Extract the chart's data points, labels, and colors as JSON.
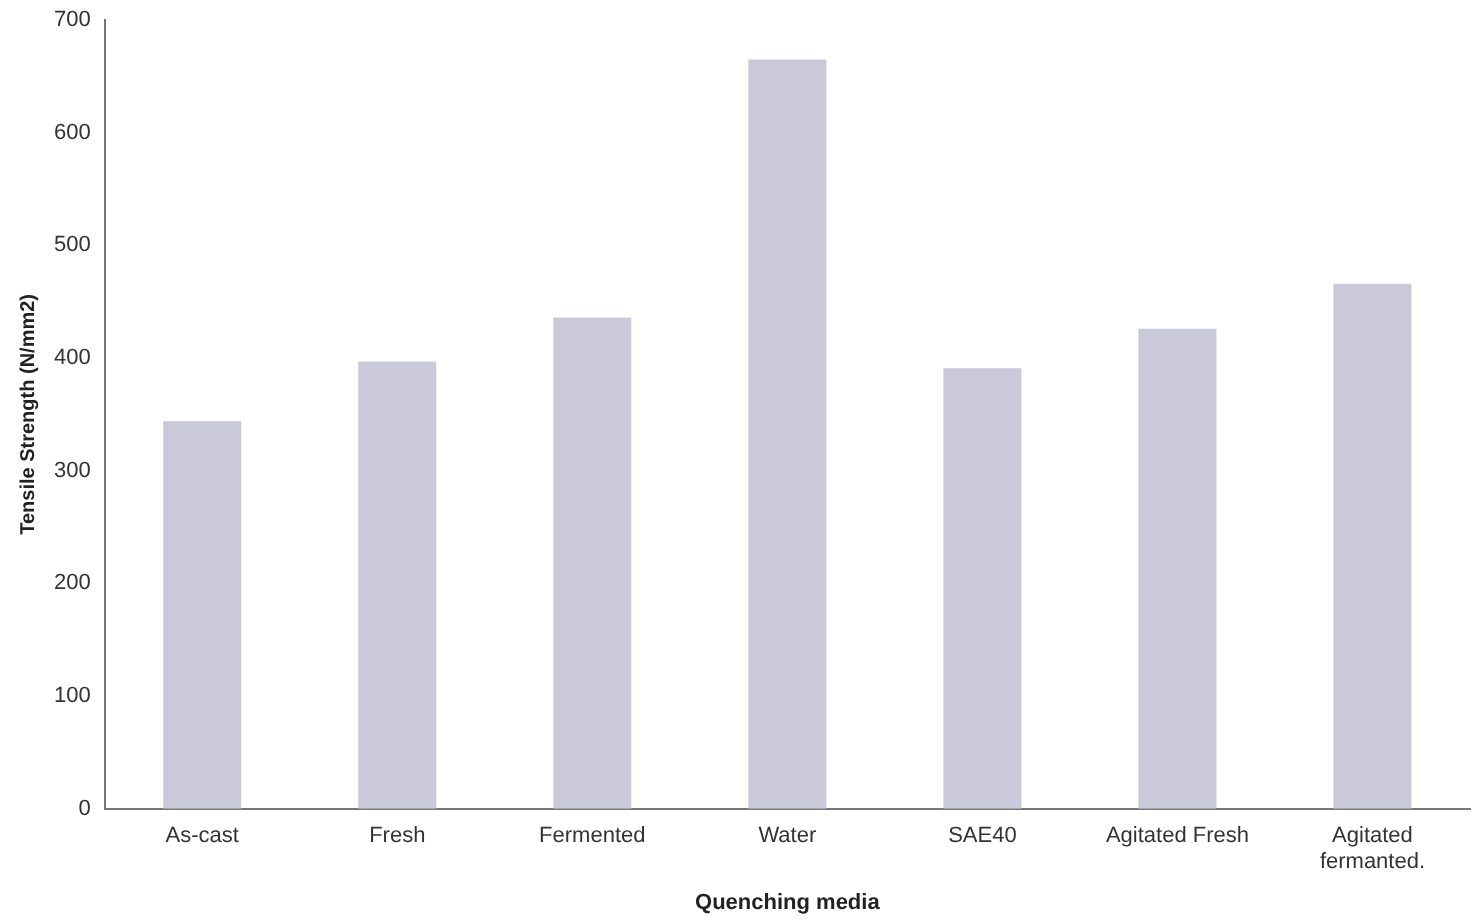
{
  "chart_data": {
    "type": "bar",
    "xlabel": "Quenching media",
    "ylabel": "Tensile Strength (N/mm2)",
    "categories": [
      "As-cast",
      "Fresh",
      "Fermented",
      "Water",
      "SAE40",
      "Agitated Fresh",
      "Agitated fermanted."
    ],
    "values": [
      344,
      397,
      436,
      665,
      391,
      426,
      466
    ],
    "color": "#c9c9d9",
    "ylim": [
      0,
      700
    ],
    "yticks": [
      0,
      100,
      200,
      300,
      400,
      500,
      600,
      700
    ],
    "grid": false,
    "legend": false
  }
}
